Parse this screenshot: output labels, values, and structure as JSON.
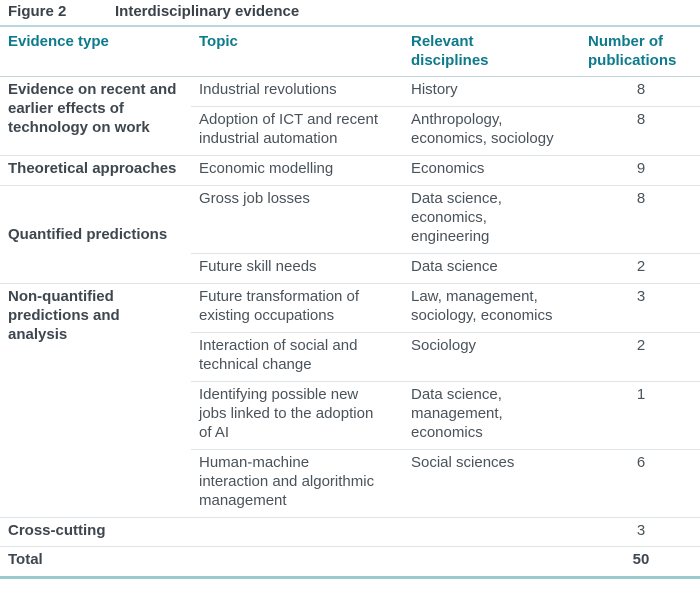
{
  "figure": {
    "label": "Figure 2",
    "title": "Interdisciplinary evidence"
  },
  "columns": [
    "Evidence type",
    "Topic",
    "Relevant disciplines",
    "Number of publications"
  ],
  "groups": [
    {
      "label": "Evidence on recent and earlier effects of technology on work",
      "rows": [
        {
          "topic": "Industrial revolutions",
          "disciplines": "History",
          "count": "8"
        },
        {
          "topic": "Adoption of ICT and recent industrial automation",
          "disciplines": "Anthropology, economics, sociology",
          "count": "8"
        }
      ]
    },
    {
      "label": "Theoretical approaches",
      "rows": [
        {
          "topic": "Economic modelling",
          "disciplines": "Economics",
          "count": "9"
        }
      ]
    },
    {
      "label": "Quantified predictions",
      "rows": [
        {
          "topic": "Gross job losses",
          "disciplines": "Data science, economics, engineering",
          "count": "8"
        },
        {
          "topic": "Future skill needs",
          "disciplines": "Data science",
          "count": "2"
        }
      ]
    },
    {
      "label": "Non-quantified predictions and analysis",
      "rows": [
        {
          "topic": "Future transformation of existing occupations",
          "disciplines": "Law, management, sociology, economics",
          "count": "3"
        },
        {
          "topic": "Interaction of social and technical change",
          "disciplines": "Sociology",
          "count": "2"
        },
        {
          "topic": "Identifying possible new jobs linked to the adoption of AI",
          "disciplines": "Data science, management, economics",
          "count": "1"
        },
        {
          "topic": "Human-machine interaction and algorithmic management",
          "disciplines": "Social sciences",
          "count": "6"
        }
      ]
    }
  ],
  "footer_rows": [
    {
      "label": "Cross-cutting",
      "count": "3"
    },
    {
      "label": "Total",
      "count": "50"
    }
  ],
  "colors": {
    "header_text_teal": "#0d7b8b",
    "rule_teal_light": "#9bc9cd",
    "title_rule_teal": "#b9d8dc",
    "divider_gray": "#dfe5e6",
    "text_dark": "#3e474f",
    "text_body": "#4a525a"
  }
}
